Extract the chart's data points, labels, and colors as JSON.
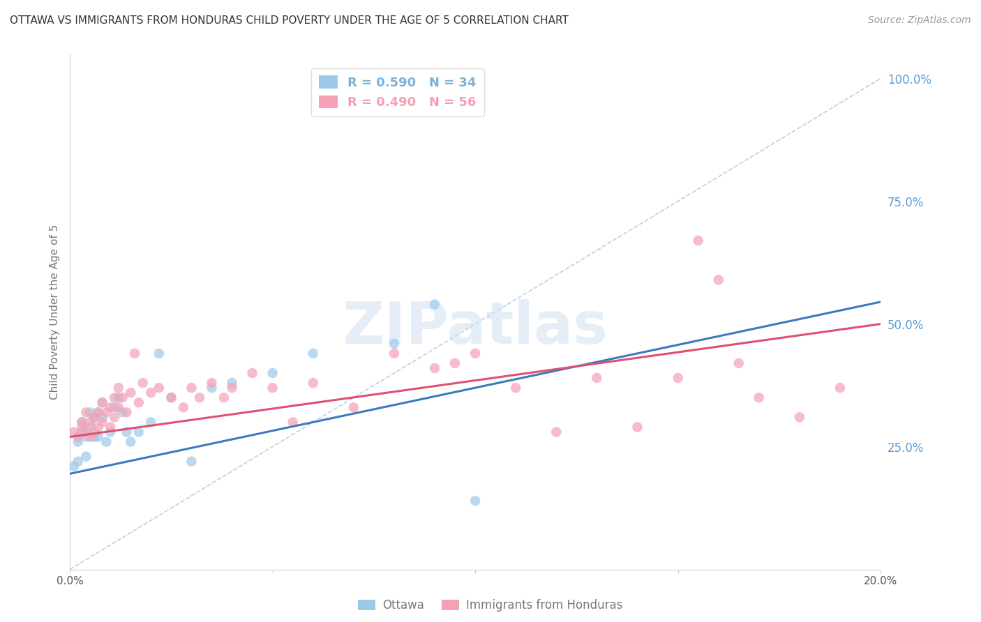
{
  "title": "OTTAWA VS IMMIGRANTS FROM HONDURAS CHILD POVERTY UNDER THE AGE OF 5 CORRELATION CHART",
  "source": "Source: ZipAtlas.com",
  "ylabel": "Child Poverty Under the Age of 5",
  "xlim": [
    0,
    0.2
  ],
  "ylim": [
    0,
    1.05
  ],
  "right_yticks": [
    0.25,
    0.5,
    0.75,
    1.0
  ],
  "right_yticklabels": [
    "25.0%",
    "50.0%",
    "75.0%",
    "100.0%"
  ],
  "xticks": [
    0.0,
    0.05,
    0.1,
    0.15,
    0.2
  ],
  "xticklabels": [
    "0.0%",
    "",
    "",
    "",
    "20.0%"
  ],
  "watermark": "ZIPatlas",
  "legend_entries": [
    {
      "label": "R = 0.590   N = 34",
      "color": "#7ab3d9"
    },
    {
      "label": "R = 0.490   N = 56",
      "color": "#f4a0b5"
    }
  ],
  "series_ottawa": {
    "color": "#9dc9e8",
    "trend_color": "#3a7abf",
    "trend_intercept": 0.195,
    "trend_slope": 1.75,
    "points_x": [
      0.001,
      0.002,
      0.002,
      0.003,
      0.003,
      0.004,
      0.004,
      0.005,
      0.005,
      0.006,
      0.006,
      0.007,
      0.007,
      0.008,
      0.008,
      0.009,
      0.01,
      0.011,
      0.012,
      0.013,
      0.014,
      0.015,
      0.017,
      0.02,
      0.022,
      0.025,
      0.03,
      0.035,
      0.04,
      0.05,
      0.06,
      0.08,
      0.09,
      0.1
    ],
    "points_y": [
      0.21,
      0.22,
      0.26,
      0.28,
      0.3,
      0.23,
      0.27,
      0.29,
      0.32,
      0.27,
      0.31,
      0.27,
      0.32,
      0.31,
      0.34,
      0.26,
      0.28,
      0.33,
      0.35,
      0.32,
      0.28,
      0.26,
      0.28,
      0.3,
      0.44,
      0.35,
      0.22,
      0.37,
      0.38,
      0.4,
      0.44,
      0.46,
      0.54,
      0.14
    ]
  },
  "series_honduras": {
    "color": "#f4a0b5",
    "trend_color": "#e05070",
    "trend_intercept": 0.27,
    "trend_slope": 1.15,
    "points_x": [
      0.001,
      0.002,
      0.003,
      0.003,
      0.004,
      0.004,
      0.005,
      0.005,
      0.006,
      0.006,
      0.007,
      0.007,
      0.008,
      0.008,
      0.009,
      0.01,
      0.01,
      0.011,
      0.011,
      0.012,
      0.012,
      0.013,
      0.014,
      0.015,
      0.016,
      0.017,
      0.018,
      0.02,
      0.022,
      0.025,
      0.028,
      0.03,
      0.032,
      0.035,
      0.038,
      0.04,
      0.045,
      0.05,
      0.055,
      0.06,
      0.07,
      0.08,
      0.09,
      0.095,
      0.1,
      0.11,
      0.12,
      0.13,
      0.14,
      0.15,
      0.155,
      0.16,
      0.165,
      0.17,
      0.18,
      0.19
    ],
    "points_y": [
      0.28,
      0.27,
      0.3,
      0.29,
      0.28,
      0.32,
      0.27,
      0.3,
      0.28,
      0.31,
      0.29,
      0.32,
      0.3,
      0.34,
      0.32,
      0.29,
      0.33,
      0.31,
      0.35,
      0.33,
      0.37,
      0.35,
      0.32,
      0.36,
      0.44,
      0.34,
      0.38,
      0.36,
      0.37,
      0.35,
      0.33,
      0.37,
      0.35,
      0.38,
      0.35,
      0.37,
      0.4,
      0.37,
      0.3,
      0.38,
      0.33,
      0.44,
      0.41,
      0.42,
      0.44,
      0.37,
      0.28,
      0.39,
      0.29,
      0.39,
      0.67,
      0.59,
      0.42,
      0.35,
      0.31,
      0.37
    ]
  },
  "bg_color": "#ffffff",
  "grid_color": "#cccccc",
  "title_color": "#333333",
  "axis_label_color": "#777777",
  "right_tick_color": "#5b9bd5"
}
